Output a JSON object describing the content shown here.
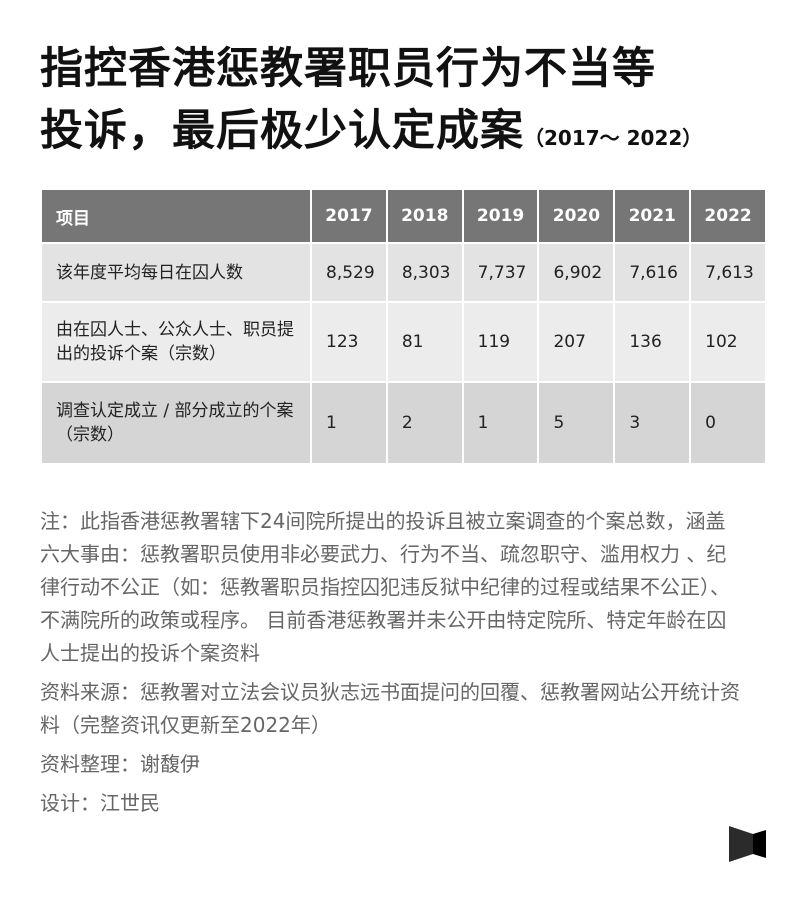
{
  "title": {
    "line1": "指控香港惩教署职员行为不当等",
    "line2": "投诉，最后极少认定成案",
    "period": "（2017～ 2022）"
  },
  "chart_data": {
    "type": "table",
    "columns": [
      "项目",
      "2017",
      "2018",
      "2019",
      "2020",
      "2021",
      "2022"
    ],
    "rows": [
      {
        "label": "该年度平均每日在囚人数",
        "values": [
          "8,529",
          "8,303",
          "7,737",
          "6,902",
          "7,616",
          "7,613"
        ]
      },
      {
        "label": "由在囚人士、公众人士、职员提出的投诉个案（宗数）",
        "values": [
          "123",
          "81",
          "119",
          "207",
          "136",
          "102"
        ]
      },
      {
        "label": "调查认定成立 / 部分成立的个案（宗数）",
        "values": [
          "1",
          "2",
          "1",
          "5",
          "3",
          "0"
        ]
      }
    ],
    "header_color": "#767676"
  },
  "notes": {
    "note": "注：此指香港惩教署辖下24间院所提出的投诉且被立案调查的个案总数，涵盖六大事由：惩教署职员使用非必要武力、行为不当、疏忽职守、滥用权力 、纪律行动不公正（如：惩教署职员指控囚犯违反狱中纪律的过程或结果不公正）、不满院所的政策或程序。 目前香港惩教署并未公开由特定院所、特定年龄在囚人士提出的投诉个案资料",
    "source": "资料来源：惩教署对立法会议员狄志远书面提问的回覆、惩教署网站公开统计资料（完整资讯仅更新至2022年）",
    "compiled": "资料整理：谢馥伊",
    "design": "设计：江世民"
  },
  "logo": {
    "icon": "bowtie-logo-icon"
  }
}
